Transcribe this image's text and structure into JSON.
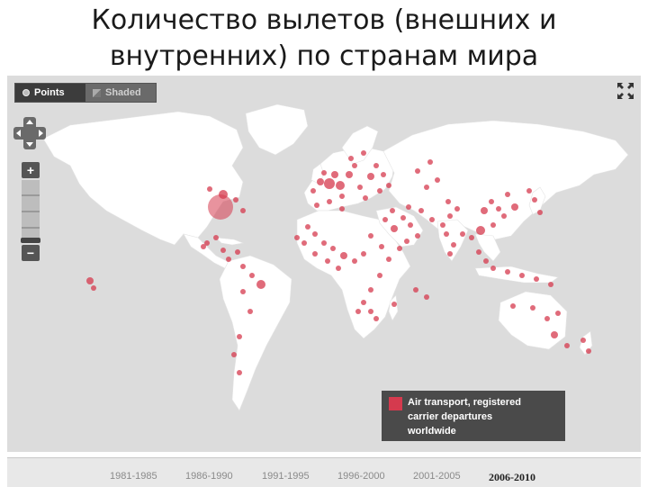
{
  "slide": {
    "title_line1": "Количество вылетов (внешних и",
    "title_line2": "внутренних) по странам мира"
  },
  "map": {
    "mode_options": [
      {
        "label": "Points",
        "active": true
      },
      {
        "label": "Shaded",
        "active": false
      }
    ],
    "land_color": "#ffffff",
    "ocean_color": "#dcdcdc",
    "point_color": "#d53a4e",
    "zoom_in_label": "+",
    "zoom_out_label": "−",
    "icons": [
      "fullscreen-icon",
      "pan-arrows-icon",
      "zoom-in-icon",
      "zoom-out-icon"
    ]
  },
  "legend": {
    "line1": "Air transport, registered",
    "line2": "carrier departures",
    "line3": "worldwide",
    "swatch_color": "#d53a4e"
  },
  "timeline": {
    "periods": [
      "1981-1985",
      "1986-1990",
      "1991-1995",
      "1996-2000",
      "2001-2005",
      "2006-2010"
    ],
    "selected": "2006-2010"
  }
}
